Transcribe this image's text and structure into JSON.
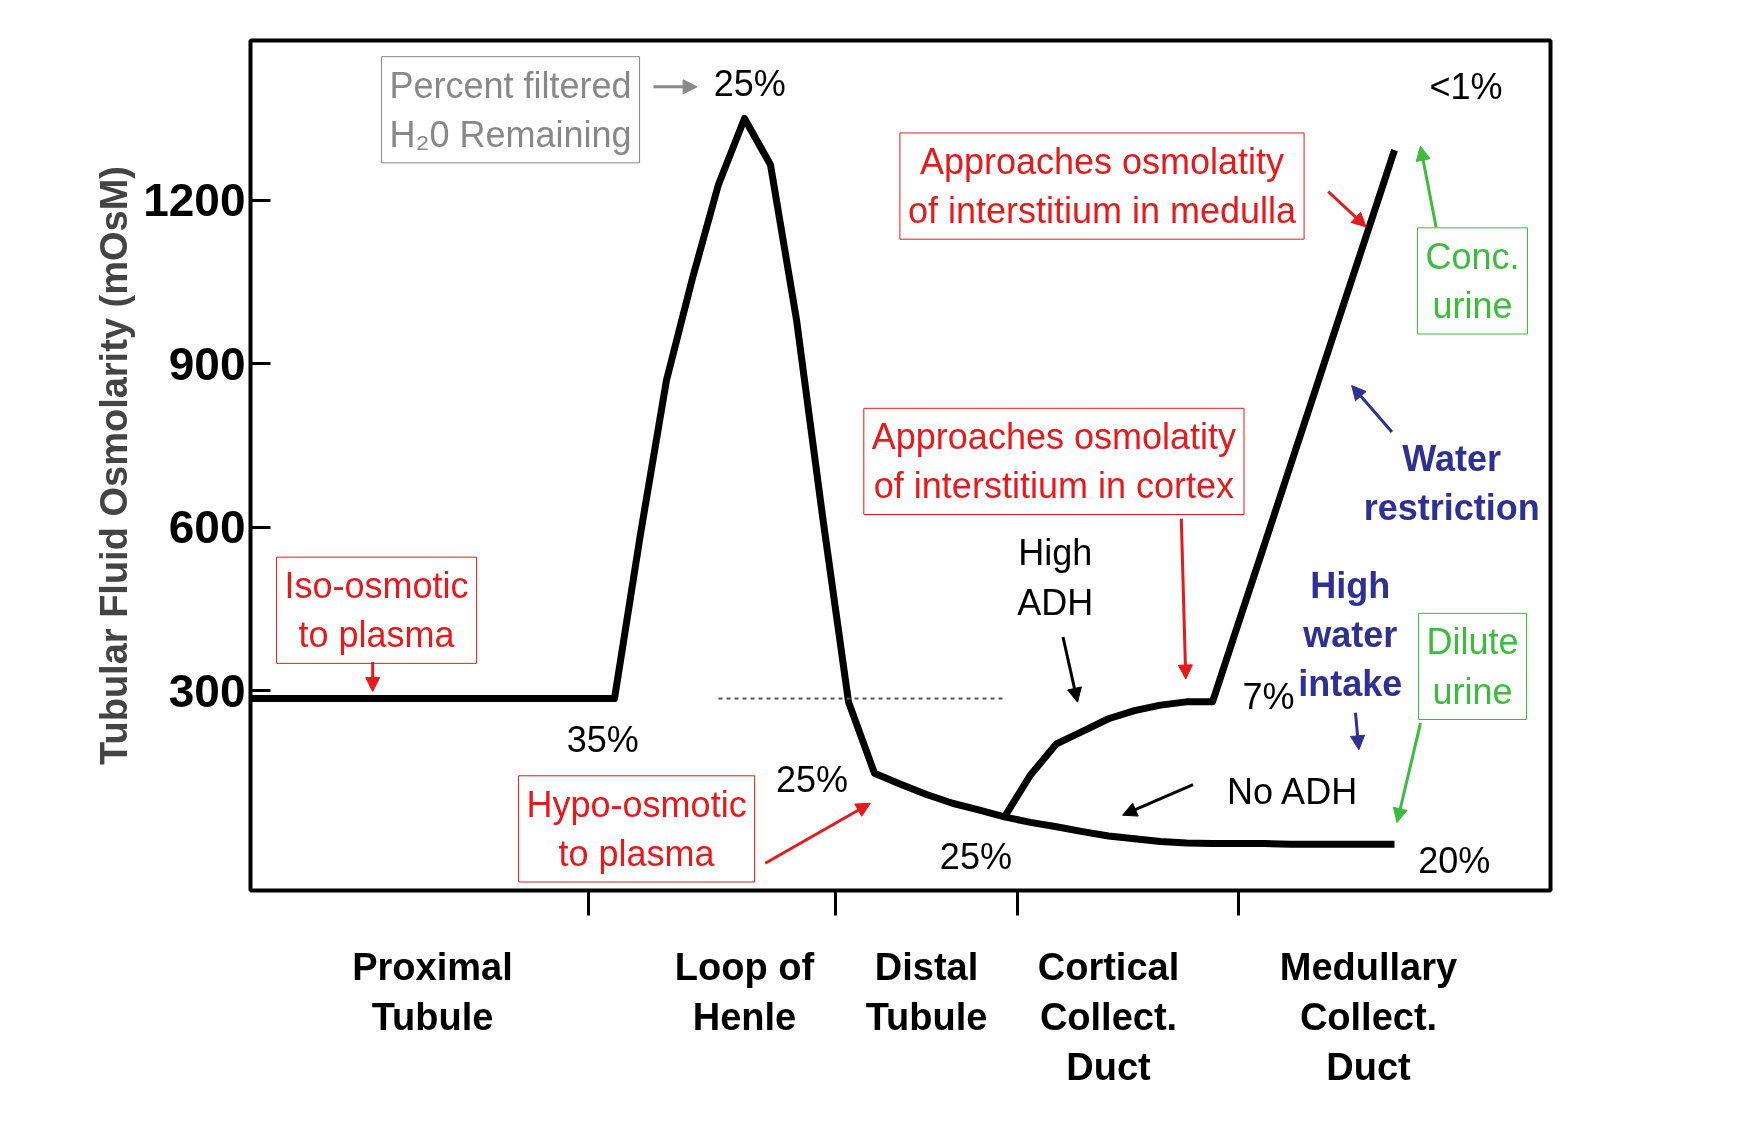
{
  "chart_data": {
    "type": "line",
    "ylabel": "Tubular Fluid Osmolarity (mOsM)",
    "categories": [
      null,
      null,
      null,
      null,
      null,
      null,
      null,
      "Proximal\nTubule",
      null,
      null,
      null,
      null,
      null,
      null,
      null,
      null,
      null,
      null,
      null,
      "Loop of\nHenle",
      null,
      null,
      null,
      null,
      null,
      null,
      "Distal\nTubule",
      null,
      null,
      null,
      null,
      null,
      null,
      "Cortical\nCollect.\nDuct",
      null,
      null,
      null,
      null,
      null,
      null,
      null,
      null,
      null,
      "Medullary\nCollect.\nDuct",
      null,
      null,
      null,
      null,
      null,
      null,
      null
    ],
    "ylim": [
      -66,
      1493
    ],
    "yticks": [
      300,
      600,
      900,
      1200
    ],
    "grid": false,
    "marker": "none",
    "series": [
      {
        "color": "#000000",
        "line_style": "solid",
        "values": [
          286,
          286,
          286,
          286,
          286,
          286,
          286,
          286,
          286,
          286,
          286,
          286,
          286,
          286,
          286,
          588,
          870,
          1057,
          1229,
          1350,
          1265,
          981,
          621,
          280,
          149,
          129,
          110,
          94,
          82,
          69,
          59,
          51,
          42,
          34,
          29,
          24,
          21,
          20,
          20,
          20,
          19,
          19,
          19,
          19,
          19,
          null,
          null,
          null,
          null,
          null,
          null
        ]
      },
      {
        "color": "#000000",
        "line_style": "solid",
        "values": [
          null,
          null,
          null,
          null,
          null,
          null,
          null,
          null,
          null,
          null,
          null,
          null,
          null,
          null,
          null,
          null,
          null,
          null,
          null,
          null,
          null,
          null,
          null,
          null,
          null,
          null,
          null,
          null,
          null,
          69,
          146,
          203,
          226,
          249,
          264,
          274,
          280,
          280,
          425,
          569,
          714,
          858,
          1003,
          1147,
          1292,
          null,
          null,
          null,
          null,
          null,
          null
        ]
      },
      {
        "color": "#555555",
        "line_style": "dashed",
        "values": [
          null,
          null,
          null,
          null,
          null,
          null,
          null,
          null,
          null,
          null,
          null,
          null,
          null,
          null,
          null,
          null,
          null,
          null,
          286,
          286,
          286,
          286,
          286,
          286,
          286,
          286,
          286,
          286,
          286,
          286,
          null,
          null,
          null,
          null,
          null,
          null,
          null,
          null,
          null,
          null,
          null,
          null,
          null,
          null,
          null,
          null,
          null,
          null,
          null,
          null,
          null
        ]
      }
    ],
    "annotations": [
      "25%",
      "<1%",
      "35%",
      "25%",
      "25%",
      "7%",
      "20%",
      "Percent filtered\nH₂0 Remaining",
      "Iso-osmotic\nto plasma",
      "Hypo-osmotic\nto plasma",
      {
        "text": "Approaches osmolatity\nof interstitium in medulla",
        "x": "Medullary\nCollect.\nDuct",
        "y": 1147
      },
      "Approaches osmolatity\nof interstitium in cortex",
      "Conc.\nurine",
      "Dilute\nurine",
      "Water\nrestriction",
      "High\nwater\nintake",
      "High\nADH",
      "No ADH"
    ]
  }
}
